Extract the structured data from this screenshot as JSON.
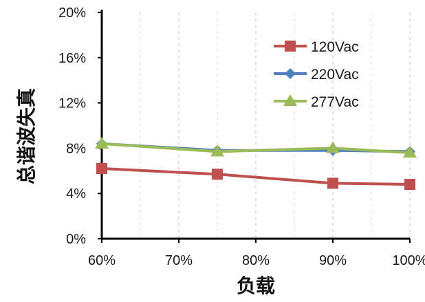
{
  "chart_data": {
    "type": "line",
    "title": "",
    "xlabel": "负载",
    "ylabel": "总谐波失真",
    "categories": [
      "60%",
      "70%",
      "80%",
      "90%",
      "100%"
    ],
    "x": [
      60,
      75,
      90,
      100
    ],
    "xlim": [
      60,
      100
    ],
    "ylim": [
      0,
      20
    ],
    "yticks": [
      "0%",
      "4%",
      "8%",
      "12%",
      "16%",
      "20%"
    ],
    "grid": true,
    "legend_position": "top-right",
    "series": [
      {
        "name": "120Vac",
        "color": "#c0504d",
        "marker": "square",
        "values": [
          6.2,
          5.7,
          4.9,
          4.8
        ]
      },
      {
        "name": "220Vac",
        "color": "#4f81bd",
        "marker": "diamond",
        "values": [
          8.4,
          7.8,
          7.8,
          7.7
        ]
      },
      {
        "name": "277Vac",
        "color": "#9bbb59",
        "marker": "triangle",
        "values": [
          8.4,
          7.7,
          8.0,
          7.6
        ]
      }
    ]
  }
}
